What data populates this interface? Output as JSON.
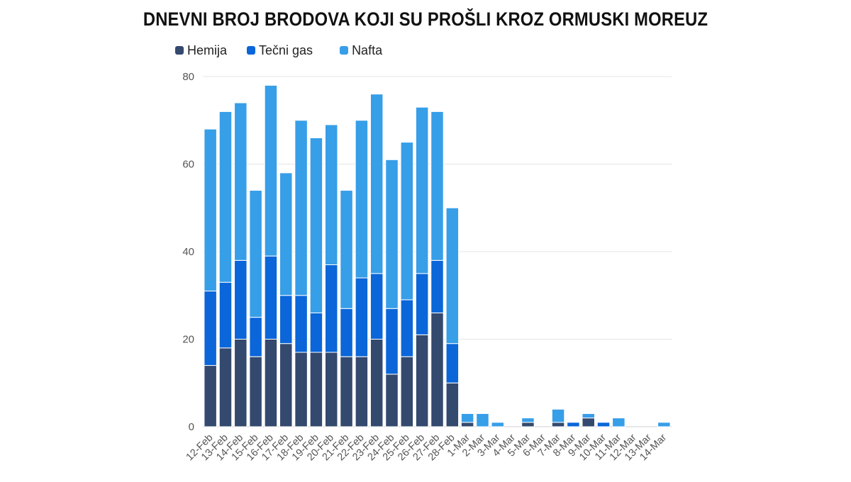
{
  "chart_data": {
    "type": "bar",
    "stacked": true,
    "title": "DNEVNI BROJ BRODOVA KOJI SU PROŠLI KROZ ORMUSKI MOREUZ",
    "xlabel": "",
    "ylabel": "",
    "ylim": [
      0,
      80
    ],
    "yticks": [
      0,
      20,
      40,
      60,
      80
    ],
    "grid": true,
    "legend_position": "top-left",
    "categories": [
      "12-Feb",
      "13-Feb",
      "14-Feb",
      "15-Feb",
      "16-Feb",
      "17-Feb",
      "18-Feb",
      "19-Feb",
      "20-Feb",
      "21-Feb",
      "22-Feb",
      "23-Feb",
      "24-Feb",
      "25-Feb",
      "26-Feb",
      "27-Feb",
      "28-Feb",
      "1-Mar",
      "2-Mar",
      "3-Mar",
      "4-Mar",
      "5-Mar",
      "6-Mar",
      "7-Mar",
      "8-Mar",
      "9-Mar",
      "10-Mar",
      "11-Mar",
      "12-Mar",
      "13-Mar",
      "14-Mar"
    ],
    "series": [
      {
        "name": "Hemija",
        "color": "#34496e",
        "values": [
          14,
          18,
          20,
          16,
          20,
          19,
          17,
          17,
          17,
          16,
          16,
          20,
          12,
          16,
          21,
          26,
          10,
          1,
          0,
          0,
          0,
          1,
          0,
          1,
          0,
          2,
          0,
          0,
          0,
          0,
          0
        ]
      },
      {
        "name": "Tečni gas",
        "color": "#0a66d9",
        "values": [
          17,
          15,
          18,
          9,
          19,
          11,
          13,
          9,
          20,
          11,
          18,
          15,
          15,
          13,
          14,
          12,
          9,
          0,
          0,
          0,
          0,
          0,
          0,
          0,
          1,
          0,
          1,
          0,
          0,
          0,
          0
        ]
      },
      {
        "name": "Nafta",
        "color": "#379ee8",
        "values": [
          37,
          39,
          36,
          29,
          39,
          28,
          40,
          40,
          32,
          27,
          36,
          41,
          34,
          36,
          38,
          34,
          31,
          2,
          3,
          1,
          0,
          1,
          0,
          3,
          0,
          1,
          0,
          2,
          0,
          0,
          1
        ]
      }
    ]
  }
}
